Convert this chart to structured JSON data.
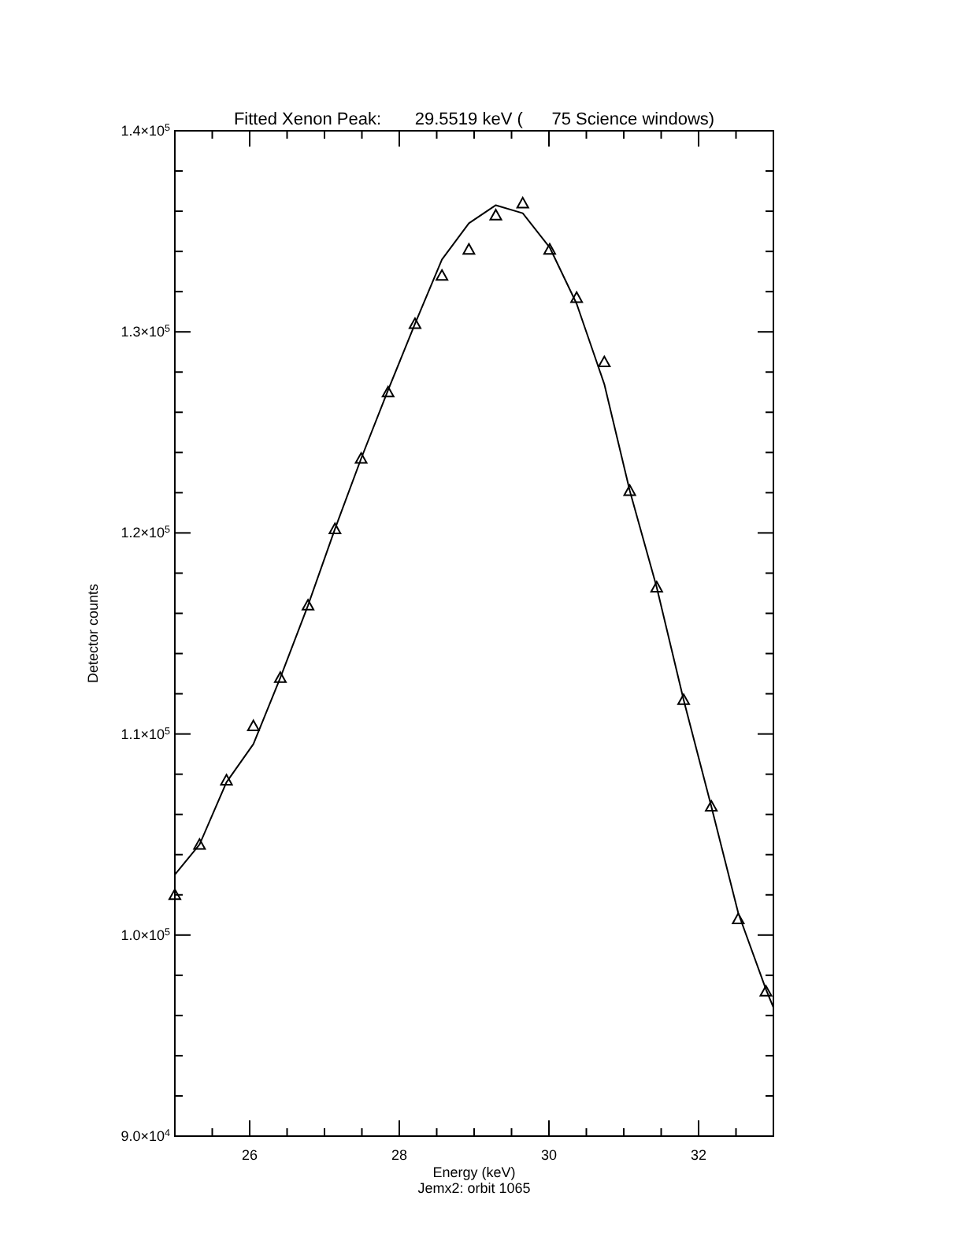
{
  "chart_data": {
    "type": "scatter",
    "title": "Fitted Xenon Peak:       29.5519 keV (      75 Science windows)",
    "xlabel": "Energy (keV)",
    "ylabel": "Detector counts",
    "annotations": [
      "Jemx2: orbit 1065"
    ],
    "xlim": [
      25,
      33
    ],
    "ylim": [
      90000,
      140000
    ],
    "xticks": [
      {
        "value": 25.5,
        "label": null
      },
      {
        "value": 26,
        "label": "26"
      },
      {
        "value": 26.5,
        "label": null
      },
      {
        "value": 27,
        "label": null
      },
      {
        "value": 27.5,
        "label": null
      },
      {
        "value": 28,
        "label": "28"
      },
      {
        "value": 28.5,
        "label": null
      },
      {
        "value": 29,
        "label": null
      },
      {
        "value": 29.5,
        "label": null
      },
      {
        "value": 30,
        "label": "30"
      },
      {
        "value": 30.5,
        "label": null
      },
      {
        "value": 31,
        "label": null
      },
      {
        "value": 31.5,
        "label": null
      },
      {
        "value": 32,
        "label": "32"
      },
      {
        "value": 32.5,
        "label": null
      }
    ],
    "yticks": [
      {
        "value": 90000,
        "label": "9.0×10$^{4}$"
      },
      {
        "value": 92000,
        "label": null
      },
      {
        "value": 94000,
        "label": null
      },
      {
        "value": 96000,
        "label": null
      },
      {
        "value": 98000,
        "label": null
      },
      {
        "value": 100000,
        "label": "1.0×10$^{5}$"
      },
      {
        "value": 102000,
        "label": null
      },
      {
        "value": 104000,
        "label": null
      },
      {
        "value": 106000,
        "label": null
      },
      {
        "value": 108000,
        "label": null
      },
      {
        "value": 110000,
        "label": "1.1×10$^{5}$"
      },
      {
        "value": 112000,
        "label": null
      },
      {
        "value": 114000,
        "label": null
      },
      {
        "value": 116000,
        "label": null
      },
      {
        "value": 118000,
        "label": null
      },
      {
        "value": 120000,
        "label": "1.2×10$^{5}$"
      },
      {
        "value": 122000,
        "label": null
      },
      {
        "value": 124000,
        "label": null
      },
      {
        "value": 126000,
        "label": null
      },
      {
        "value": 128000,
        "label": null
      },
      {
        "value": 130000,
        "label": "1.3×10$^{5}$"
      },
      {
        "value": 132000,
        "label": null
      },
      {
        "value": 134000,
        "label": null
      },
      {
        "value": 136000,
        "label": null
      },
      {
        "value": 138000,
        "label": null
      },
      {
        "value": 140000,
        "label": "1.4×10$^{5}$"
      }
    ],
    "grid": false,
    "series": [
      {
        "marker": "triangle",
        "color": "#000000",
        "x": [
          25.0,
          25.33,
          25.69,
          26.05,
          26.41,
          26.78,
          27.14,
          27.49,
          27.85,
          28.21,
          28.57,
          28.93,
          29.29,
          29.65,
          30.01,
          30.37,
          30.74,
          31.08,
          31.44,
          31.8,
          32.17,
          32.53,
          32.9
        ],
        "values": [
          102000,
          104500,
          107700,
          110400,
          112800,
          116400,
          120200,
          123700,
          127000,
          130400,
          132800,
          134100,
          135800,
          136400,
          134100,
          131700,
          128500,
          122100,
          117300,
          111700,
          106400,
          100800,
          97200
        ]
      },
      {
        "type": "line",
        "marker": "none",
        "line_style": "solid",
        "color": "#000000",
        "x": [
          25.0,
          25.33,
          25.69,
          26.05,
          26.41,
          26.78,
          27.14,
          27.49,
          27.85,
          28.21,
          28.57,
          28.93,
          29.29,
          29.65,
          30.01,
          30.37,
          30.74,
          31.08,
          31.44,
          31.8,
          32.17,
          32.53,
          32.9,
          33.0
        ],
        "values": [
          103000,
          104500,
          107600,
          109500,
          112800,
          116400,
          120200,
          123700,
          127100,
          130400,
          133600,
          135400,
          136300,
          135900,
          134200,
          131400,
          127400,
          122100,
          117300,
          111700,
          106400,
          101100,
          97300,
          96400
        ]
      }
    ]
  }
}
